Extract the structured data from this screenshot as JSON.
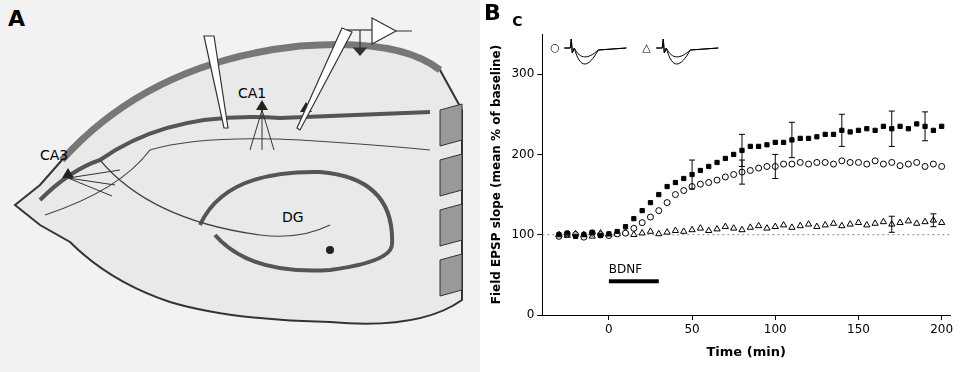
{
  "figure": {
    "panel_a": {
      "letter": "A",
      "regions": [
        "CA1",
        "CA3",
        "DG"
      ]
    },
    "panel_b": {
      "letter": "B",
      "inset_letter": "C",
      "inset_symbols": [
        "○",
        "△"
      ]
    }
  },
  "chart_data": {
    "type": "scatter",
    "x_label": "Time (min)",
    "y_label": "Field EPSP slope (mean % of baseline)",
    "x": [
      -30,
      -25,
      -20,
      -15,
      -10,
      -5,
      0,
      5,
      10,
      15,
      20,
      25,
      30,
      35,
      40,
      45,
      50,
      55,
      60,
      65,
      70,
      75,
      80,
      85,
      90,
      95,
      100,
      105,
      110,
      115,
      120,
      125,
      130,
      135,
      140,
      145,
      150,
      155,
      160,
      165,
      170,
      175,
      180,
      185,
      190,
      195,
      200
    ],
    "xlim": [
      -40,
      205
    ],
    "xticks": [
      0,
      50,
      100,
      150,
      200
    ],
    "ylim": [
      0,
      350
    ],
    "yticks": [
      0,
      100,
      200,
      300
    ],
    "grid": false,
    "series": [
      {
        "color": "#000000",
        "marker": "square_filled",
        "values": [
          100,
          102,
          98,
          100,
          103,
          99,
          101,
          104,
          110,
          120,
          130,
          140,
          150,
          160,
          165,
          170,
          175,
          180,
          185,
          190,
          195,
          200,
          205,
          210,
          210,
          212,
          215,
          215,
          218,
          220,
          220,
          222,
          225,
          225,
          230,
          228,
          230,
          232,
          230,
          235,
          232,
          235,
          232,
          238,
          235,
          230,
          235
        ],
        "error_bars": [
          {
            "x": 50,
            "value": 18
          },
          {
            "x": 80,
            "value": 20
          },
          {
            "x": 110,
            "value": 22
          },
          {
            "x": 140,
            "value": 20
          },
          {
            "x": 170,
            "value": 22
          },
          {
            "x": 190,
            "value": 18
          }
        ]
      },
      {
        "color": "#000000",
        "marker": "circle_open",
        "values": [
          98,
          101,
          100,
          97,
          102,
          100,
          99,
          101,
          102,
          108,
          115,
          122,
          130,
          140,
          150,
          155,
          160,
          163,
          165,
          168,
          172,
          175,
          178,
          180,
          183,
          185,
          185,
          188,
          188,
          190,
          188,
          190,
          190,
          188,
          192,
          190,
          190,
          188,
          192,
          188,
          190,
          186,
          188,
          190,
          185,
          188,
          185
        ],
        "error_bars": [
          {
            "x": 80,
            "value": 15
          },
          {
            "x": 100,
            "value": 15
          }
        ]
      },
      {
        "color": "#000000",
        "marker": "triangle_open",
        "values": [
          100,
          99,
          101,
          100,
          98,
          102,
          100,
          101,
          103,
          100,
          102,
          104,
          101,
          103,
          105,
          104,
          106,
          108,
          105,
          107,
          110,
          108,
          106,
          109,
          111,
          108,
          110,
          112,
          109,
          111,
          113,
          110,
          112,
          114,
          111,
          113,
          115,
          112,
          114,
          116,
          113,
          115,
          117,
          114,
          116,
          118,
          115
        ],
        "error_bars": [
          {
            "x": 170,
            "value": 10
          },
          {
            "x": 195,
            "value": 8
          }
        ]
      }
    ],
    "reference_line": 100,
    "treatment": {
      "label": "BDNF",
      "start": 0,
      "end": 30
    }
  }
}
